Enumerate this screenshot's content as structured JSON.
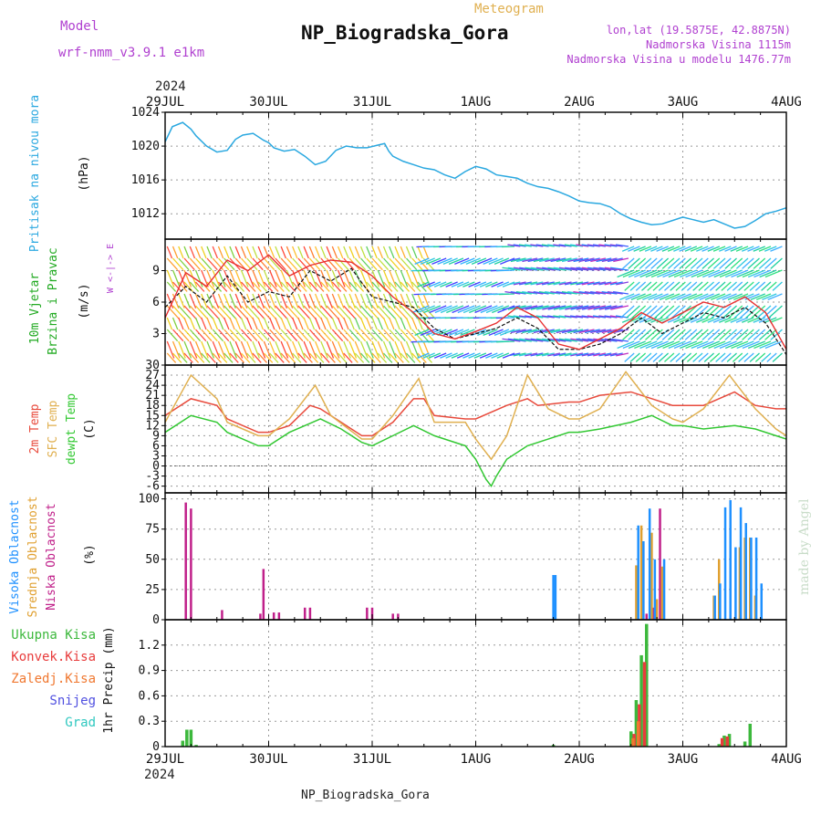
{
  "header": {
    "model_label": "Model",
    "model_name": "wrf-nmm_v3.9.1  e1km",
    "title": "NP_Biogradska_Gora",
    "subtitle": "Meteogram",
    "lonlat": "lon,lat (19.5875E, 42.8875N)",
    "elevation": "Nadmorska Visina 1115m",
    "model_elevation": "Nadmorska Visina u modelu 1476.77m",
    "year_top": "2024"
  },
  "footer": {
    "station": "NP_Biogradska_Gora",
    "year_bottom": "2024"
  },
  "watermark": "made by Angel",
  "colors": {
    "pressure": "#2aa8e0",
    "t2m": "#e84a3c",
    "tsfc": "#e0b050",
    "dewpt": "#32c832",
    "high_cloud": "#1e90ff",
    "mid_cloud": "#e0a030",
    "low_cloud": "#c0208a",
    "total": "#3cb83c",
    "conv": "#e83c3c",
    "frz": "#f07830",
    "snow": "#5050e0",
    "hail": "#30c8c0",
    "wind_label": "#22aa22",
    "compass": "#b040d0"
  },
  "chart_data": [
    {
      "type": "line",
      "panel": "pressure",
      "ylabel_left": "Pritisak na nivou mora",
      "ylabel_unit": "(hPa)",
      "x_ticks": [
        "29JUL",
        "30JUL",
        "31JUL",
        "1AUG",
        "2AUG",
        "3AUG",
        "4AUG"
      ],
      "ylim": [
        1009,
        1024
      ],
      "y_ticks": [
        1012,
        1016,
        1020,
        1024
      ],
      "grid": true,
      "series": [
        {
          "x": [
            0,
            0.07,
            0.17,
            0.25,
            0.3,
            0.4,
            0.5,
            0.6,
            0.68,
            0.75,
            0.85,
            0.95,
            1.0,
            1.05,
            1.15,
            1.25,
            1.35,
            1.45,
            1.55,
            1.65,
            1.75,
            1.85,
            1.95,
            2.05,
            2.12,
            2.16,
            2.2,
            2.3,
            2.4,
            2.5,
            2.6,
            2.7,
            2.8,
            2.9,
            3.0,
            3.1,
            3.2,
            3.3,
            3.4,
            3.5,
            3.6,
            3.7,
            3.8,
            3.9,
            4.0,
            4.1,
            4.2,
            4.3,
            4.4,
            4.5,
            4.6,
            4.7,
            4.8,
            4.9,
            5.0,
            5.1,
            5.2,
            5.3,
            5.4,
            5.5,
            5.6,
            5.7,
            5.8,
            5.9,
            6.0
          ],
          "values": [
            1020.5,
            1022.3,
            1022.8,
            1022.0,
            1021.2,
            1020.0,
            1019.3,
            1019.5,
            1020.8,
            1021.3,
            1021.5,
            1020.7,
            1020.4,
            1019.8,
            1019.4,
            1019.6,
            1018.8,
            1017.8,
            1018.2,
            1019.5,
            1020.0,
            1019.8,
            1019.8,
            1020.1,
            1020.3,
            1019.4,
            1018.8,
            1018.2,
            1017.8,
            1017.4,
            1017.2,
            1016.6,
            1016.2,
            1017.0,
            1017.6,
            1017.3,
            1016.6,
            1016.4,
            1016.2,
            1015.6,
            1015.2,
            1015.0,
            1014.6,
            1014.1,
            1013.5,
            1013.3,
            1013.2,
            1012.8,
            1012.0,
            1011.4,
            1011.0,
            1010.7,
            1010.8,
            1011.2,
            1011.6,
            1011.3,
            1011.0,
            1011.3,
            1010.8,
            1010.3,
            1010.5,
            1011.2,
            1012.0,
            1012.3,
            1012.7
          ]
        }
      ]
    },
    {
      "type": "line",
      "panel": "wind",
      "ylabel_left": "10m Vjetar",
      "ylabel_left2": "Brzina i Pravac",
      "ylabel_unit": "(m/s)",
      "compass": "W <-|-> E",
      "ylim": [
        0,
        12
      ],
      "y_ticks": [
        3,
        6,
        9
      ],
      "grid": true,
      "series": [
        {
          "name": "speed_black",
          "x": [
            0,
            0.2,
            0.4,
            0.6,
            0.8,
            1.0,
            1.2,
            1.4,
            1.6,
            1.8,
            2.0,
            2.2,
            2.4,
            2.6,
            2.8,
            3.0,
            3.2,
            3.4,
            3.6,
            3.8,
            4.0,
            4.2,
            4.4,
            4.6,
            4.8,
            5.0,
            5.2,
            5.4,
            5.6,
            5.8,
            6.0
          ],
          "values": [
            5.5,
            7.5,
            6.0,
            8.5,
            6.0,
            7.0,
            6.5,
            9.0,
            8.0,
            9.2,
            6.5,
            6.0,
            5.5,
            3.5,
            2.5,
            3.0,
            3.5,
            4.5,
            3.5,
            1.5,
            1.5,
            2.0,
            3.0,
            4.5,
            3.0,
            4.0,
            5.0,
            4.5,
            5.5,
            4.0,
            1.0
          ]
        },
        {
          "name": "gust_red",
          "x": [
            0,
            0.2,
            0.4,
            0.6,
            0.8,
            1.0,
            1.2,
            1.4,
            1.6,
            1.8,
            2.0,
            2.2,
            2.4,
            2.6,
            2.8,
            3.0,
            3.2,
            3.4,
            3.6,
            3.8,
            4.0,
            4.2,
            4.4,
            4.6,
            4.8,
            5.0,
            5.2,
            5.4,
            5.6,
            5.8,
            6.0
          ],
          "values": [
            4.5,
            8.8,
            7.5,
            10.0,
            9.0,
            10.5,
            8.5,
            9.5,
            10.0,
            9.8,
            8.5,
            6.5,
            5.0,
            3.0,
            2.5,
            3.2,
            4.0,
            5.5,
            4.5,
            2.0,
            1.5,
            2.5,
            3.5,
            5.0,
            4.0,
            5.0,
            6.0,
            5.5,
            6.5,
            5.0,
            1.5
          ]
        }
      ]
    },
    {
      "type": "line",
      "panel": "temperature",
      "ylabel_left": "2m Temp",
      "ylabel_left2": "SFC Temp",
      "ylabel_left3": "dewpt Temp",
      "ylabel_unit": "(C)",
      "ylim": [
        -8,
        30
      ],
      "y_ticks": [
        -6,
        -3,
        0,
        3,
        6,
        9,
        12,
        15,
        18,
        21,
        24,
        27,
        30
      ],
      "grid": true,
      "series": [
        {
          "name": "2m Temp",
          "x": [
            0,
            0.25,
            0.5,
            0.6,
            0.9,
            1.0,
            1.2,
            1.4,
            1.5,
            1.6,
            1.9,
            2.0,
            2.2,
            2.4,
            2.5,
            2.6,
            2.9,
            3.0,
            3.3,
            3.5,
            3.6,
            3.9,
            4.0,
            4.2,
            4.5,
            4.7,
            4.9,
            5.0,
            5.2,
            5.5,
            5.7,
            5.9,
            6.0
          ],
          "values": [
            15,
            20,
            18,
            14,
            10,
            10,
            12,
            18,
            17,
            15,
            9,
            9,
            13,
            20,
            20,
            15,
            14,
            14,
            18,
            20,
            18,
            19,
            19,
            21,
            22,
            20,
            18,
            18,
            18,
            22,
            18,
            17,
            17
          ]
        },
        {
          "name": "SFC Temp",
          "x": [
            0,
            0.25,
            0.5,
            0.6,
            0.9,
            1.0,
            1.2,
            1.45,
            1.6,
            1.9,
            2.0,
            2.2,
            2.45,
            2.6,
            2.9,
            3.0,
            3.15,
            3.3,
            3.5,
            3.7,
            3.9,
            4.0,
            4.2,
            4.45,
            4.7,
            4.9,
            5.0,
            5.2,
            5.45,
            5.7,
            5.9,
            6.0
          ],
          "values": [
            13,
            27,
            20,
            13,
            9,
            9,
            14,
            24,
            15,
            8,
            8,
            15,
            26,
            13,
            13,
            8,
            2,
            9,
            27,
            17,
            14,
            14,
            17,
            28,
            18,
            14,
            13,
            17,
            27,
            17,
            11,
            9
          ]
        },
        {
          "name": "dewpt Temp",
          "x": [
            0,
            0.25,
            0.5,
            0.6,
            0.9,
            1.0,
            1.2,
            1.5,
            1.7,
            1.9,
            2.0,
            2.2,
            2.4,
            2.6,
            2.9,
            3.0,
            3.1,
            3.15,
            3.2,
            3.3,
            3.5,
            3.7,
            3.9,
            4.0,
            4.2,
            4.5,
            4.7,
            4.9,
            5.0,
            5.2,
            5.5,
            5.7,
            5.9,
            6.0
          ],
          "values": [
            10,
            15,
            13,
            10,
            6,
            6,
            10,
            14,
            11,
            7,
            6,
            9,
            12,
            9,
            6,
            2,
            -4,
            -6,
            -3,
            2,
            6,
            8,
            10,
            10,
            11,
            13,
            15,
            12,
            12,
            11,
            12,
            11,
            9,
            8
          ]
        }
      ]
    },
    {
      "type": "bar",
      "panel": "clouds",
      "ylabel_left": "Visoka Oblacnost",
      "ylabel_left2": "Srednja Oblacnost",
      "ylabel_left3": "Niska Oblacnost",
      "ylabel_unit": "(%)",
      "ylim": [
        0,
        105
      ],
      "y_ticks": [
        0,
        25,
        50,
        75,
        100
      ],
      "grid": true,
      "series": [
        {
          "name": "Niska Oblacnost",
          "x": [
            0.2,
            0.25,
            0.55,
            0.92,
            0.95,
            1.05,
            1.1,
            1.35,
            1.4,
            1.95,
            2.0,
            2.2,
            2.25,
            4.65,
            4.72,
            4.78
          ],
          "values": [
            97,
            92,
            8,
            5,
            42,
            6,
            6,
            10,
            10,
            10,
            10,
            5,
            5,
            5,
            10,
            92
          ]
        },
        {
          "name": "Srednja Oblacnost",
          "x": [
            4.55,
            4.6,
            4.7,
            4.75,
            4.8,
            5.3,
            5.35,
            5.55,
            5.6,
            5.65,
            5.7
          ],
          "values": [
            45,
            78,
            72,
            17,
            44,
            20,
            50,
            60,
            68,
            68,
            20
          ]
        },
        {
          "name": "Visoka Oblacnost",
          "x": [
            3.75,
            3.77,
            4.57,
            4.62,
            4.68,
            4.73,
            4.82,
            5.31,
            5.36,
            5.41,
            5.46,
            5.51,
            5.56,
            5.61,
            5.66,
            5.71,
            5.76
          ],
          "values": [
            37,
            37,
            78,
            65,
            92,
            50,
            50,
            20,
            30,
            93,
            99,
            60,
            93,
            80,
            68,
            68,
            30
          ]
        }
      ]
    },
    {
      "type": "bar",
      "panel": "precip",
      "legend": [
        "Ukupna Kisa",
        "Konvek.Kisa",
        "Zaledj.Kisa",
        "Snijeg",
        "Grad"
      ],
      "ylabel_unit": "1hr Precip (mm)",
      "ylim": [
        0,
        1.5
      ],
      "y_ticks": [
        0,
        0.3,
        0.6,
        0.9,
        1.2
      ],
      "grid": true,
      "series": [
        {
          "name": "Ukupna Kisa",
          "x": [
            0.17,
            0.21,
            0.25,
            0.3,
            3.75,
            4.5,
            4.55,
            4.6,
            4.65,
            5.35,
            5.4,
            5.45,
            5.6,
            5.65
          ],
          "values": [
            0.07,
            0.2,
            0.2,
            0.02,
            0.02,
            0.18,
            0.55,
            1.08,
            1.45,
            0.03,
            0.13,
            0.15,
            0.06,
            0.27
          ]
        },
        {
          "name": "Konvek.Kisa",
          "x": [
            4.53,
            4.58,
            4.63,
            5.38,
            5.43
          ],
          "values": [
            0.15,
            0.5,
            1.0,
            0.1,
            0.12
          ]
        },
        {
          "name": "Zaledj.Kisa",
          "x": [
            4.52,
            4.57
          ],
          "values": [
            0.1,
            0.3
          ]
        }
      ]
    }
  ]
}
